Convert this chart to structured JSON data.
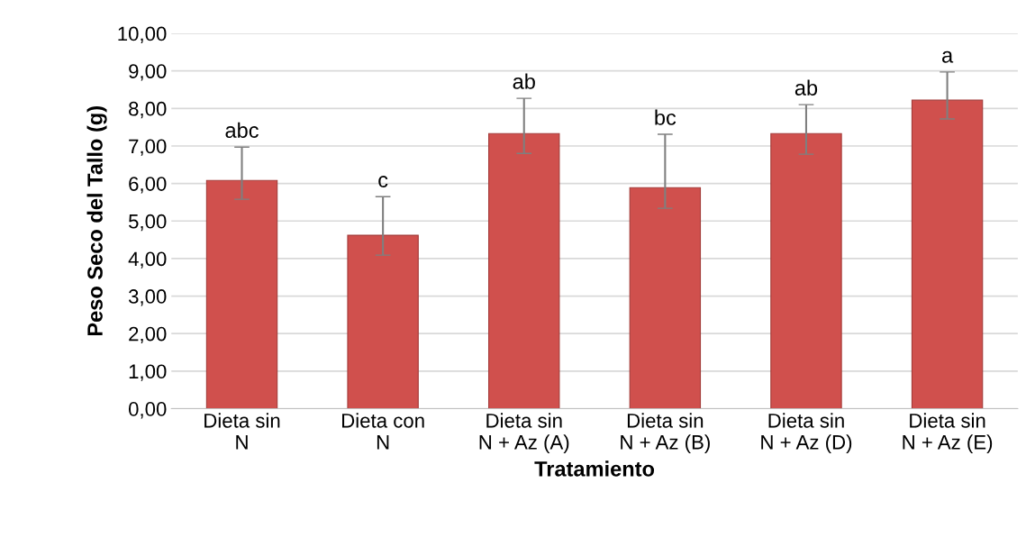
{
  "chart_data": {
    "type": "bar",
    "xlabel": "Tratamiento",
    "ylabel": "Peso Seco del Tallo (g)",
    "categories": [
      "Dieta sin\nN",
      "Dieta con\nN",
      "Dieta sin\nN + Az (A)",
      "Dieta sin\nN + Az (B)",
      "Dieta sin\nN + Az (D)",
      "Dieta sin\nN + Az (E)"
    ],
    "values": [
      6.08,
      4.62,
      7.33,
      5.89,
      7.33,
      8.22
    ],
    "errors": [
      [
        5.58,
        6.97
      ],
      [
        4.09,
        5.65
      ],
      [
        6.8,
        8.27
      ],
      [
        5.34,
        7.31
      ],
      [
        6.78,
        8.1
      ],
      [
        7.72,
        8.97
      ]
    ],
    "color": "#d0504d",
    "ylim": [
      0,
      10
    ],
    "yticks": [
      {
        "value": 0,
        "label": "0,00"
      },
      {
        "value": 1,
        "label": "1,00"
      },
      {
        "value": 2,
        "label": "2,00"
      },
      {
        "value": 3,
        "label": "3,00"
      },
      {
        "value": 4,
        "label": "4,00"
      },
      {
        "value": 5,
        "label": "5,00"
      },
      {
        "value": 6,
        "label": "6,00"
      },
      {
        "value": 7,
        "label": "7,00"
      },
      {
        "value": 8,
        "label": "8,00"
      },
      {
        "value": 9,
        "label": "9,00"
      },
      {
        "value": 10,
        "label": "10,00"
      }
    ],
    "grid": "y",
    "annotations": [
      {
        "text": "abc",
        "x": "Dieta sin\nN",
        "y": 6.97
      },
      {
        "text": "c",
        "x": "Dieta con\nN",
        "y": 5.65
      },
      {
        "text": "ab",
        "x": "Dieta sin\nN + Az (A)",
        "y": 8.27
      },
      {
        "text": "bc",
        "x": "Dieta sin\nN + Az (B)",
        "y": 7.31
      },
      {
        "text": "ab",
        "x": "Dieta sin\nN + Az (D)",
        "y": 8.1
      },
      {
        "text": "a",
        "x": "Dieta sin\nN + Az (E)",
        "y": 8.97
      }
    ]
  }
}
